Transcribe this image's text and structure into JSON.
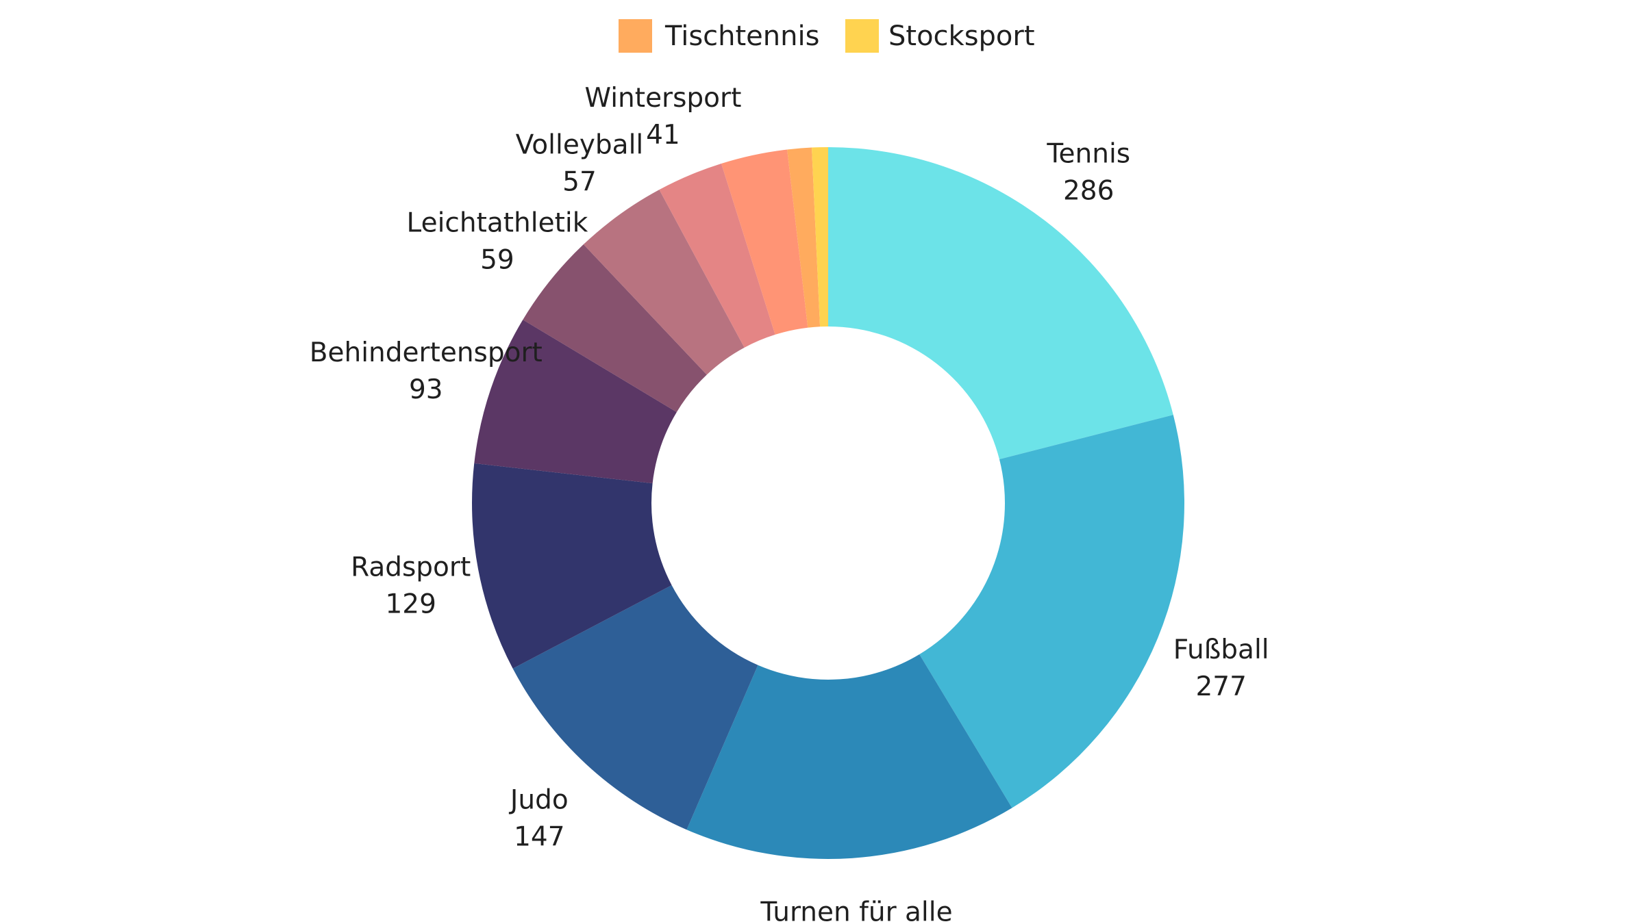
{
  "chart_data": {
    "type": "pie",
    "donut": true,
    "title": "",
    "legend": {
      "placement": "top-center",
      "entries": [
        {
          "name": "Tischtennis",
          "color": "#FFAB5E"
        },
        {
          "name": "Stocksport",
          "color": "#FFD350"
        }
      ]
    },
    "slices": [
      {
        "label": "Tennis",
        "value": 286,
        "show_label": true,
        "color": "#6CE3E8"
      },
      {
        "label": "Fußball",
        "value": 277,
        "show_label": true,
        "color": "#42B7D5"
      },
      {
        "label": "Turnen für alle",
        "value": 206,
        "show_label": true,
        "color": "#2C89B8"
      },
      {
        "label": "Judo",
        "value": 147,
        "show_label": true,
        "color": "#2E5F97"
      },
      {
        "label": "Radsport",
        "value": 129,
        "show_label": true,
        "color": "#32356C"
      },
      {
        "label": "Behindertensport",
        "value": 93,
        "show_label": true,
        "color": "#5B3765"
      },
      {
        "label": "Leichtathletik",
        "value": 59,
        "show_label": true,
        "color": "#87526E"
      },
      {
        "label": "Volleyball",
        "value": 57,
        "show_label": true,
        "color": "#B87380"
      },
      {
        "label": "Wintersport",
        "value": 41,
        "show_label": true,
        "color": "#E48585"
      },
      {
        "label": "",
        "value": 41,
        "show_label": false,
        "color": "#FF9475"
      },
      {
        "label": "Tischtennis",
        "value": 15,
        "show_label": false,
        "color": "#FFAB5E"
      },
      {
        "label": "Stocksport",
        "value": 10,
        "show_label": false,
        "color": "#FFD350"
      }
    ]
  }
}
